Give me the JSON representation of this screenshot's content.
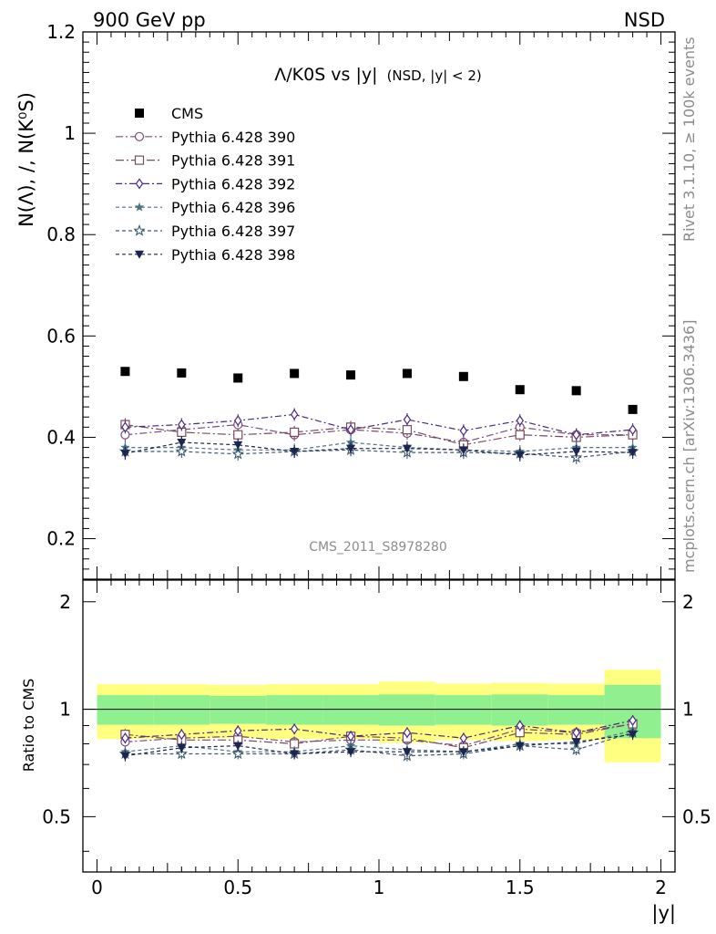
{
  "header": {
    "energy_label": "900 GeV pp",
    "process_label": "NSD"
  },
  "side_labels": {
    "rivet": "Rivet 3.1.10, ≥ 100k events",
    "source": "mcplots.cern.ch [arXiv:1306.3436]"
  },
  "analysis_id": "CMS_2011_S8978280",
  "chart_data": [
    {
      "type": "scatter",
      "title": "Λ/K0S vs |y|",
      "title_suffix": "(NSD, |y| < 2)",
      "ylabel": "N(Λ), /, N(K⁰S)",
      "xlim": [
        -0.05,
        2.05
      ],
      "ylim": [
        0.12,
        1.2
      ],
      "x_ticks": [
        "0",
        "0.5",
        "1",
        "1.5",
        "2"
      ],
      "y_ticks": [
        "0.2",
        "0.4",
        "0.6",
        "0.8",
        "1",
        "1.2"
      ],
      "x": [
        0.1,
        0.3,
        0.5,
        0.7,
        0.9,
        1.1,
        1.3,
        1.5,
        1.7,
        1.9
      ],
      "series": [
        {
          "name": "CMS",
          "marker": "square-filled",
          "color": "#000000",
          "values": [
            0.53,
            0.527,
            0.517,
            0.526,
            0.523,
            0.526,
            0.52,
            0.494,
            0.492,
            0.455
          ]
        },
        {
          "name": "Pythia 6.428 390",
          "marker": "circle-open",
          "color": "#7b4d7b",
          "values": [
            0.405,
            0.415,
            0.425,
            0.405,
            0.415,
            0.408,
            0.39,
            0.42,
            0.405,
            0.405
          ]
        },
        {
          "name": "Pythia 6.428 391",
          "marker": "square-open",
          "color": "#7a4d5c",
          "values": [
            0.425,
            0.41,
            0.405,
            0.41,
            0.42,
            0.415,
            0.385,
            0.405,
            0.4,
            0.405
          ]
        },
        {
          "name": "Pythia 6.428 392",
          "marker": "diamond-open",
          "color": "#4a2a82",
          "values": [
            0.42,
            0.425,
            0.433,
            0.445,
            0.415,
            0.435,
            0.413,
            0.433,
            0.405,
            0.415
          ]
        },
        {
          "name": "Pythia 6.428 396",
          "marker": "star-filled",
          "color": "#4a7384",
          "values": [
            0.38,
            0.38,
            0.375,
            0.375,
            0.39,
            0.38,
            0.375,
            0.372,
            0.38,
            0.38
          ]
        },
        {
          "name": "Pythia 6.428 397",
          "marker": "star-open",
          "color": "#3f5a70",
          "values": [
            0.372,
            0.372,
            0.367,
            0.372,
            0.375,
            0.37,
            0.37,
            0.368,
            0.36,
            0.372
          ]
        },
        {
          "name": "Pythia 6.428 398",
          "marker": "triangle-down-filled",
          "color": "#1c2550",
          "values": [
            0.368,
            0.39,
            0.385,
            0.372,
            0.378,
            0.378,
            0.375,
            0.365,
            0.372,
            0.37
          ]
        }
      ]
    },
    {
      "type": "scatter",
      "ylabel": "Ratio to CMS",
      "xlabel": "|y|",
      "xlim": [
        -0.05,
        2.05
      ],
      "ylim": [
        0.35,
        2.3
      ],
      "y_ticks": [
        "0.5",
        "1",
        "2"
      ],
      "reference_line": 1,
      "bands": {
        "outer_color": "#ffff80",
        "inner_color": "#90f090",
        "outer_half_width": [
          0.175,
          0.175,
          0.17,
          0.175,
          0.175,
          0.195,
          0.18,
          0.185,
          0.18,
          0.29
        ],
        "inner_half_width": [
          0.095,
          0.095,
          0.09,
          0.095,
          0.095,
          0.1,
          0.095,
          0.1,
          0.095,
          0.17
        ]
      },
      "x": [
        0.1,
        0.3,
        0.5,
        0.7,
        0.9,
        1.1,
        1.3,
        1.5,
        1.7,
        1.9
      ],
      "series": [
        {
          "name": "Pythia 6.428 390",
          "values": [
            0.81,
            0.83,
            0.84,
            0.81,
            0.82,
            0.82,
            0.79,
            0.88,
            0.86,
            0.91
          ]
        },
        {
          "name": "Pythia 6.428 391",
          "values": [
            0.85,
            0.82,
            0.82,
            0.8,
            0.84,
            0.83,
            0.78,
            0.86,
            0.85,
            0.91
          ]
        },
        {
          "name": "Pythia 6.428 392",
          "values": [
            0.83,
            0.85,
            0.87,
            0.88,
            0.84,
            0.86,
            0.83,
            0.9,
            0.86,
            0.93
          ]
        },
        {
          "name": "Pythia 6.428 396",
          "values": [
            0.76,
            0.79,
            0.76,
            0.76,
            0.79,
            0.77,
            0.76,
            0.8,
            0.8,
            0.87
          ]
        },
        {
          "name": "Pythia 6.428 397",
          "values": [
            0.75,
            0.75,
            0.75,
            0.75,
            0.77,
            0.74,
            0.75,
            0.79,
            0.77,
            0.86
          ]
        },
        {
          "name": "Pythia 6.428 398",
          "values": [
            0.74,
            0.78,
            0.79,
            0.75,
            0.76,
            0.76,
            0.76,
            0.79,
            0.81,
            0.85
          ]
        }
      ]
    }
  ]
}
